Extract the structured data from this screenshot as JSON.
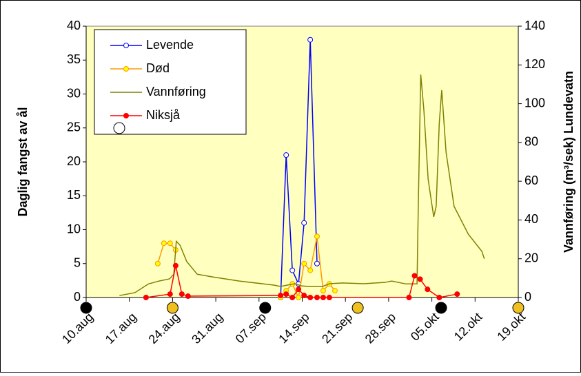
{
  "chart_data": {
    "type": "line",
    "ylabel": "Daglig fangst av ål",
    "y2label": "Vannføring (m³/sek) Lundevatn",
    "xlim": [
      0,
      70
    ],
    "xticks": [
      {
        "value": 0,
        "label": "10.aug"
      },
      {
        "value": 7,
        "label": "17.aug"
      },
      {
        "value": 14,
        "label": "24.aug"
      },
      {
        "value": 21,
        "label": "31.aug"
      },
      {
        "value": 28,
        "label": "07.sep"
      },
      {
        "value": 35,
        "label": "14.sep"
      },
      {
        "value": 42,
        "label": "21.sep"
      },
      {
        "value": 49,
        "label": "28.sep"
      },
      {
        "value": 56,
        "label": "05.okt"
      },
      {
        "value": 63,
        "label": "12.okt"
      },
      {
        "value": 70,
        "label": "19.okt"
      }
    ],
    "ylim": [
      0,
      40
    ],
    "yticks": [
      0,
      5,
      10,
      15,
      20,
      25,
      30,
      35,
      40
    ],
    "y2lim": [
      0,
      140
    ],
    "y2ticks": [
      0,
      20,
      40,
      60,
      80,
      100,
      120,
      140
    ],
    "background": "#ffffc0",
    "markers": [
      {
        "x": 0,
        "color": "#000000"
      },
      {
        "x": 14,
        "color": "#f0c020"
      },
      {
        "x": 29,
        "color": "#000000"
      },
      {
        "x": 44,
        "color": "#f0c020"
      },
      {
        "x": 57.5,
        "color": "#000000"
      },
      {
        "x": 70,
        "color": "#f0c020"
      }
    ],
    "series": [
      {
        "name": "Levende",
        "color": "#0000ff",
        "marker": "#ffffff",
        "axis": "y",
        "x": [
          31.5,
          32.4,
          33.4,
          34.4,
          35.3,
          36.3,
          37.4
        ],
        "values": [
          0,
          21,
          4,
          2,
          11,
          38,
          5
        ]
      },
      {
        "name": "Død",
        "color": "#ff9900",
        "marker": "#ffff00",
        "axis": "y",
        "x": [
          11.6,
          12.6,
          13.6,
          14.5,
          20,
          31.5,
          32.4,
          33.4,
          34.4,
          35.3,
          36.3,
          37.4,
          38.4,
          39.4,
          40.3
        ],
        "values": [
          5,
          8,
          8,
          7,
          null,
          0,
          1,
          2,
          0,
          5,
          4,
          9,
          1,
          2,
          1
        ]
      },
      {
        "name": "Vannføring",
        "color": "#808000",
        "marker": null,
        "axis": "y2",
        "x": [
          5.4,
          7.9,
          10.1,
          11.8,
          13.5,
          14.2,
          14.6,
          15.2,
          16.3,
          18,
          20.3,
          24.8,
          30.4,
          31.5,
          32.6,
          33.8,
          34.9,
          36,
          38.3,
          39.4,
          41.6,
          45,
          48.4,
          49.5,
          51.8,
          53.6,
          53.8,
          54.2,
          54.7,
          55.4,
          56.3,
          56.7,
          57.2,
          57.6,
          58.3,
          59.6,
          61.9,
          64.1,
          64.5
        ],
        "values": [
          1,
          2.5,
          7,
          8.5,
          9.6,
          12,
          29,
          27,
          18.5,
          12,
          10.7,
          8.5,
          6.4,
          5.7,
          6.4,
          7.1,
          6,
          5.7,
          5.7,
          7.1,
          7.5,
          7.1,
          7.8,
          8.5,
          7,
          7,
          47,
          115,
          97,
          61,
          41.6,
          47,
          90,
          107,
          75,
          47,
          32.7,
          23.8,
          20
        ]
      },
      {
        "name": "Niksjå",
        "color": "#ff0000",
        "marker": "#ff0000",
        "axis": "y",
        "x": [
          9.7,
          13.6,
          14.5,
          15.5,
          16.5,
          31.5,
          32.4,
          33.4,
          34.4,
          35.3,
          36.3,
          37.4,
          38.4,
          39.4,
          52.3,
          53.2,
          54.1,
          55.3,
          57.2,
          60.1
        ],
        "values": [
          0,
          0.5,
          4.7,
          0.5,
          0.2,
          0.3,
          0.5,
          0,
          1.2,
          0.3,
          0,
          0,
          0,
          0,
          0,
          3.2,
          2.7,
          1.2,
          0,
          0.5
        ]
      }
    ]
  }
}
